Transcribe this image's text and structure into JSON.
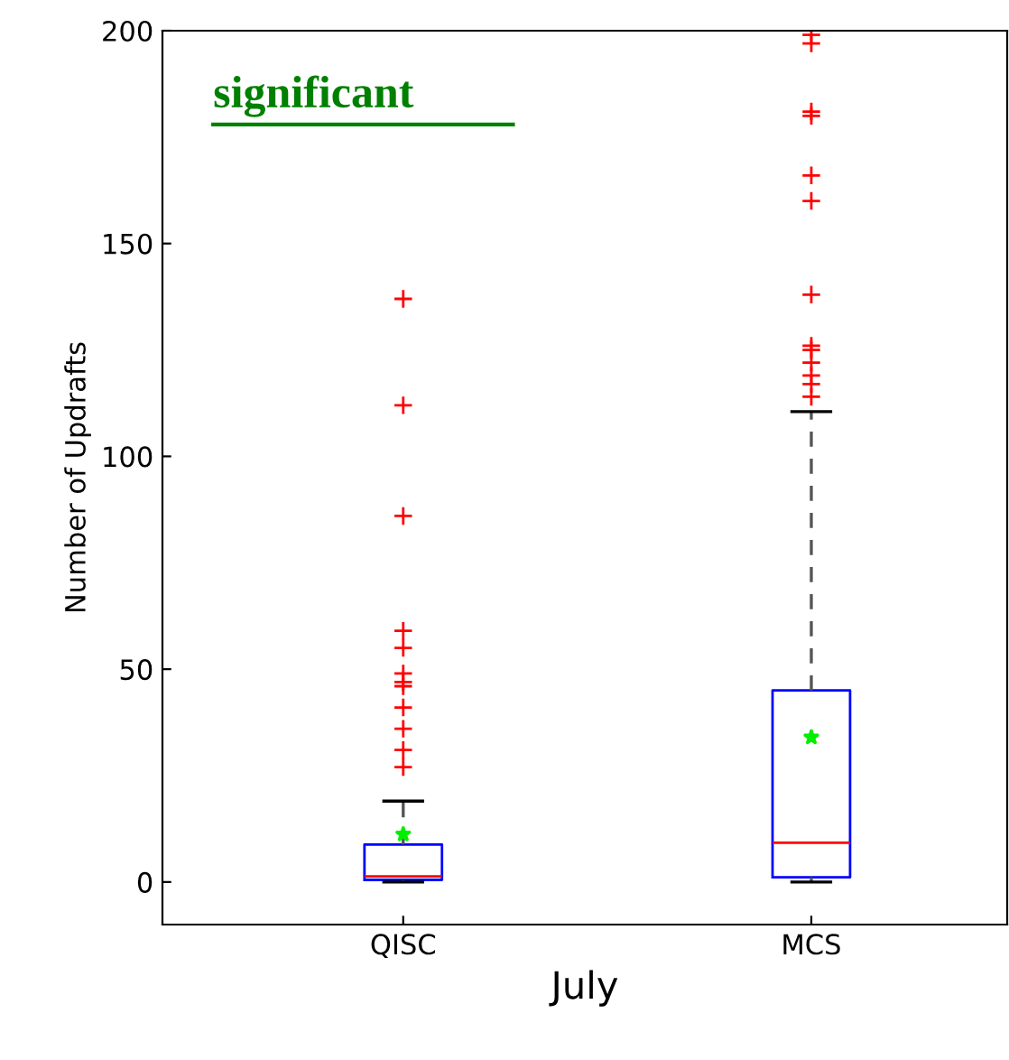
{
  "chart_data": {
    "type": "box",
    "xlabel": "July",
    "ylabel": "Number of Updrafts",
    "annotations": [
      "significant"
    ],
    "categories": [
      "QISC",
      "MCS"
    ],
    "boxes": [
      {
        "low": 0,
        "q1": 0.5,
        "median": 1.3,
        "q3": 8.8,
        "high": 19,
        "mean": 11.2,
        "outliers": [
          137,
          112,
          86,
          59,
          55,
          49,
          47,
          46,
          41,
          36,
          31,
          27
        ]
      },
      {
        "low": 0,
        "q1": 1.1,
        "median": 9.2,
        "q3": 45,
        "high": 110.5,
        "mean": 34,
        "outliers": [
          199,
          197,
          181,
          180,
          166,
          160,
          138,
          126,
          125,
          122,
          119,
          117,
          114
        ]
      }
    ],
    "ylim": [
      -10,
      200
    ],
    "yticks": [
      0,
      50,
      100,
      150,
      200
    ],
    "grid": false
  }
}
